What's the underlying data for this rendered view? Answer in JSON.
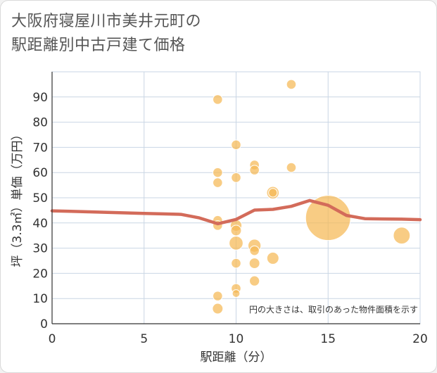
{
  "chart_data": {
    "type": "scatter",
    "title_line1": "大阪府寝屋川市美井元町の",
    "title_line2": "駅距離別中古戸建て価格",
    "xlabel": "駅距離（分）",
    "ylabel": "坪（3.3㎡）単価（万円）",
    "xlim": [
      0,
      20
    ],
    "ylim": [
      0,
      100
    ],
    "xticks": [
      0,
      5,
      10,
      15,
      20
    ],
    "yticks": [
      0,
      10,
      20,
      30,
      40,
      50,
      60,
      70,
      80,
      90
    ],
    "grid": true,
    "note": "円の大きさは、取引のあった物件面積を示す",
    "colors": {
      "bubble": "#f5b955",
      "line": "#d36b5a",
      "grid": "#c9d6e4"
    },
    "points": [
      {
        "x": 9,
        "y": 89,
        "s": 1
      },
      {
        "x": 9,
        "y": 60,
        "s": 1
      },
      {
        "x": 9,
        "y": 56,
        "s": 1
      },
      {
        "x": 9,
        "y": 41,
        "s": 1
      },
      {
        "x": 9,
        "y": 39,
        "s": 1
      },
      {
        "x": 9,
        "y": 11,
        "s": 1
      },
      {
        "x": 9,
        "y": 6,
        "s": 1.1
      },
      {
        "x": 10,
        "y": 71,
        "s": 1
      },
      {
        "x": 10,
        "y": 58,
        "s": 1
      },
      {
        "x": 10,
        "y": 39,
        "s": 1.2
      },
      {
        "x": 10,
        "y": 37,
        "s": 1.1
      },
      {
        "x": 10,
        "y": 32,
        "s": 1.45
      },
      {
        "x": 10,
        "y": 24,
        "s": 1
      },
      {
        "x": 10,
        "y": 14,
        "s": 1
      },
      {
        "x": 10,
        "y": 12,
        "s": 0.8
      },
      {
        "x": 11,
        "y": 63,
        "s": 1
      },
      {
        "x": 11,
        "y": 61,
        "s": 1
      },
      {
        "x": 11,
        "y": 31,
        "s": 1.35
      },
      {
        "x": 11,
        "y": 29,
        "s": 1
      },
      {
        "x": 11,
        "y": 24,
        "s": 1.1
      },
      {
        "x": 11,
        "y": 17,
        "s": 1.05
      },
      {
        "x": 12,
        "y": 52,
        "s": 1.3
      },
      {
        "x": 12,
        "y": 52,
        "s": 0.9
      },
      {
        "x": 12,
        "y": 26,
        "s": 1.25
      },
      {
        "x": 13,
        "y": 95,
        "s": 1
      },
      {
        "x": 13,
        "y": 62,
        "s": 1
      },
      {
        "x": 15,
        "y": 42,
        "s": 4.7
      },
      {
        "x": 19,
        "y": 35,
        "s": 1.75
      }
    ],
    "series": [
      {
        "x": [
          0,
          1,
          2,
          3,
          4,
          5,
          6,
          7,
          8,
          9,
          10,
          11,
          12,
          13,
          14,
          15,
          16,
          17,
          18,
          19,
          20
        ],
        "values": [
          44.8,
          44.6,
          44.4,
          44.2,
          44.0,
          43.8,
          43.6,
          43.4,
          42.0,
          39.7,
          41.4,
          45.1,
          45.4,
          46.6,
          48.9,
          47.0,
          43.0,
          41.7,
          41.6,
          41.5,
          41.3
        ]
      }
    ]
  }
}
